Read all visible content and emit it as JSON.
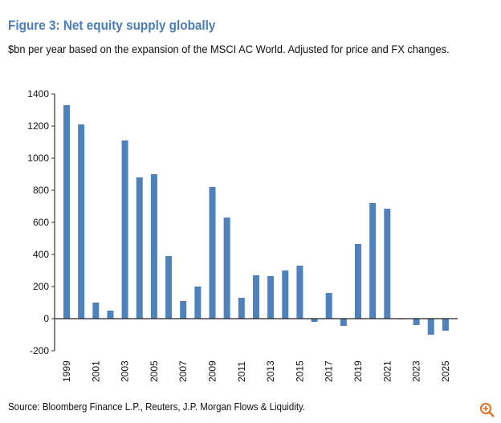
{
  "title": "Figure 3: Net equity supply globally",
  "subtitle": "$bn per year based on the expansion of the MSCI AC World. Adjusted for price and FX changes.",
  "source": "Source: Bloomberg Finance L.P., Reuters, J.P. Morgan Flows & Liquidity.",
  "colors": {
    "bar": "#4f81bd",
    "title": "#4a7ebb",
    "zoom": "#e07020"
  },
  "chart_data": {
    "type": "bar",
    "title": "Figure 3: Net equity supply globally",
    "ylabel": "$bn per year",
    "xlabel": "",
    "ylim": [
      -200,
      1400
    ],
    "yticks": [
      -200,
      0,
      200,
      400,
      600,
      800,
      1000,
      1200,
      1400
    ],
    "categories": [
      "1999",
      "2000",
      "2001",
      "2002",
      "2003",
      "2004",
      "2005",
      "2006",
      "2007",
      "2008",
      "2009",
      "2010",
      "2011",
      "2012",
      "2013",
      "2014",
      "2015",
      "2016",
      "2017",
      "2018",
      "2019",
      "2020",
      "2021",
      "2022",
      "2023",
      "2024",
      "2025"
    ],
    "xtick_labels": [
      "1999",
      "2001",
      "2003",
      "2005",
      "2007",
      "2009",
      "2011",
      "2013",
      "2015",
      "2017",
      "2019",
      "2021",
      "2023",
      "2025"
    ],
    "values": [
      1330,
      1210,
      100,
      50,
      1110,
      880,
      900,
      390,
      110,
      200,
      820,
      630,
      130,
      270,
      265,
      300,
      330,
      -20,
      160,
      -45,
      465,
      720,
      685,
      0,
      -40,
      -100,
      -75
    ],
    "grid": false
  }
}
